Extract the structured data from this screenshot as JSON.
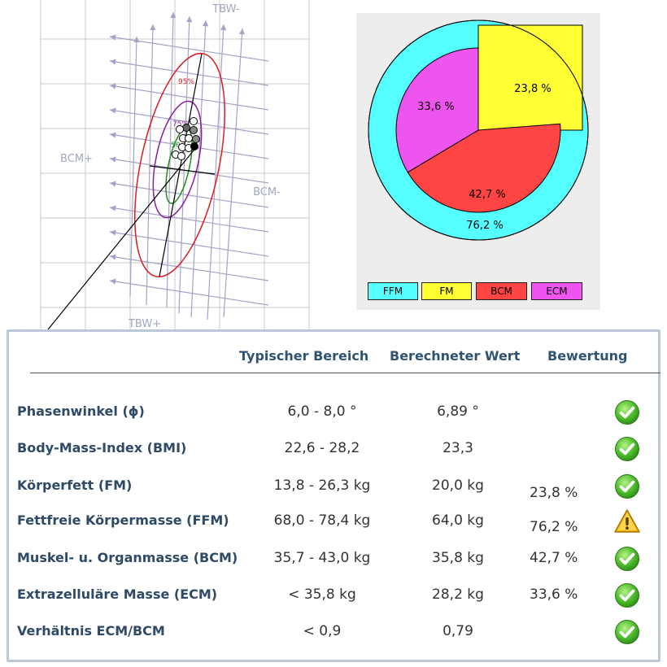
{
  "rxc_graph": {
    "labels": {
      "tbw_minus": "TBW-",
      "tbw_plus": "TBW+",
      "bcm_plus": "BCM+",
      "bcm_minus": "BCM-",
      "pct95": "95%",
      "pct75": "75%",
      "pct50": "50"
    },
    "colors": {
      "grid": "#c8c8c8",
      "arrow": "#a3a3c8",
      "ellipse95": "#d81e1e",
      "ellipse75": "#8b1f9e",
      "ellipse50": "#1f8f1f"
    }
  },
  "chart_data": {
    "type": "pie",
    "series": [
      {
        "name": "FFM",
        "value": 76.2,
        "label": "76,2 %",
        "color": "#55ffff"
      },
      {
        "name": "FM",
        "value": 23.8,
        "label": "23,8 %",
        "color": "#ffff33"
      },
      {
        "name": "BCM",
        "value": 42.7,
        "label": "42,7 %",
        "color": "#ff4444"
      },
      {
        "name": "ECM",
        "value": 33.6,
        "label": "33,6 %",
        "color": "#ee55ee"
      }
    ],
    "legend": [
      "FFM",
      "FM",
      "BCM",
      "ECM"
    ],
    "legend_placement": "bottom"
  },
  "table": {
    "headers": {
      "range": "Typischer Bereich",
      "value": "Berechneter Wert",
      "rating": "Bewertung"
    },
    "rows": [
      {
        "label": "Phasenwinkel (ϕ)",
        "range": "6,0 - 8,0 °",
        "value": "6,89 °",
        "pct": "",
        "status": "ok"
      },
      {
        "label": "Body-Mass-Index (BMI)",
        "range": "22,6 - 28,2",
        "value": "23,3",
        "pct": "",
        "status": "ok"
      },
      {
        "label": "Körperfett (FM)",
        "range": "13,8 - 26,3 kg",
        "value": "20,0 kg",
        "pct": "23,8 %",
        "status": "ok"
      },
      {
        "label": "Fettfreie Körpermasse (FFM)",
        "range": "68,0 - 78,4 kg",
        "value": "64,0 kg",
        "pct": "76,2 %",
        "status": "warning"
      },
      {
        "label": "Muskel- u. Organmasse (BCM)",
        "range": "35,7 - 43,0 kg",
        "value": "35,8 kg",
        "pct": "42,7 %",
        "status": "ok"
      },
      {
        "label": "Extrazelluläre Masse (ECM)",
        "range": "< 35,8 kg",
        "value": "28,2 kg",
        "pct": "33,6 %",
        "status": "ok"
      },
      {
        "label": "Verhältnis ECM/BCM",
        "range": "< 0,9",
        "value": "0,79",
        "pct": "",
        "status": "ok"
      }
    ]
  },
  "icons": {
    "ok": "check-circle-icon",
    "warning": "warning-triangle-icon"
  }
}
